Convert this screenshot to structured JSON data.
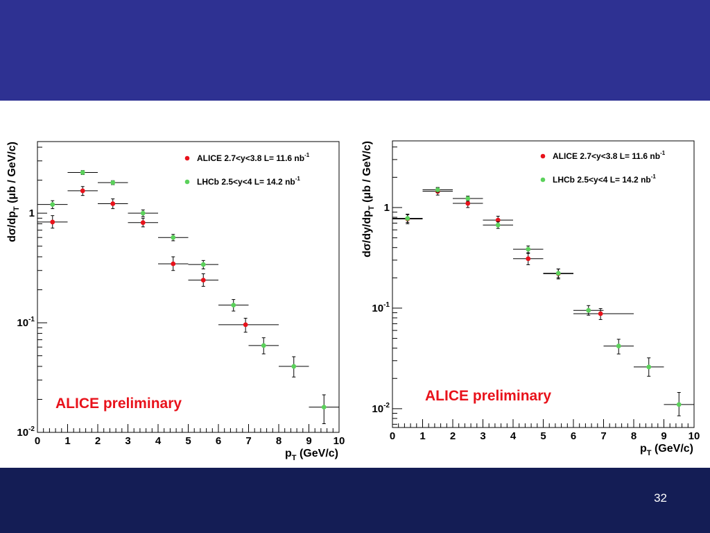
{
  "slide": {
    "number": "32",
    "colors": {
      "top_band": "#2e3192",
      "bottom_band": "#141d55",
      "alice": "#e8121b",
      "lhcb": "#5bd15b"
    }
  },
  "chart_data": [
    {
      "type": "scatter",
      "title": "",
      "xlabel": {
        "main": "p",
        "sub": "T",
        "rest": " (GeV/c)"
      },
      "ylabel": {
        "pre": "dσ/dp",
        "sub": "T",
        "rest": " (μb / GeV/c)"
      },
      "x_ticks": [
        "0",
        "1",
        "2",
        "3",
        "4",
        "5",
        "6",
        "7",
        "8",
        "9",
        "10"
      ],
      "y_ticks": [
        {
          "base": "10",
          "exp": "-2",
          "value": 0.01
        },
        {
          "base": "10",
          "exp": "-1",
          "value": 0.1
        },
        {
          "base": "1",
          "exp": "",
          "value": 1
        }
      ],
      "xlim": [
        0,
        10
      ],
      "ylim": [
        0.01,
        4.5
      ],
      "log_y": true,
      "legend_position": "top-right",
      "watermark": "ALICE preliminary",
      "series": [
        {
          "name": "ALICE 2.7<y<3.8 L= 11.6 nb",
          "name_sup": "-1",
          "color": "#e8121b",
          "points": [
            {
              "x": 0.5,
              "xerr": [
                0.5,
                0.5
              ],
              "y": 0.83,
              "ylo": 0.73,
              "yhi": 0.95
            },
            {
              "x": 1.5,
              "xerr": [
                0.5,
                0.5
              ],
              "y": 1.6,
              "ylo": 1.45,
              "yhi": 1.75
            },
            {
              "x": 2.5,
              "xerr": [
                0.5,
                0.5
              ],
              "y": 1.22,
              "ylo": 1.1,
              "yhi": 1.35
            },
            {
              "x": 3.5,
              "xerr": [
                0.5,
                0.5
              ],
              "y": 0.82,
              "ylo": 0.75,
              "yhi": 0.9
            },
            {
              "x": 4.5,
              "xerr": [
                0.5,
                0.5
              ],
              "y": 0.345,
              "ylo": 0.3,
              "yhi": 0.4
            },
            {
              "x": 5.5,
              "xerr": [
                0.5,
                0.5
              ],
              "y": 0.245,
              "ylo": 0.215,
              "yhi": 0.28
            },
            {
              "x": 6.9,
              "xerr": [
                0.9,
                1.1
              ],
              "y": 0.096,
              "ylo": 0.082,
              "yhi": 0.11
            }
          ]
        },
        {
          "name": "LHCb 2.5<y<4 L= 14.2 nb",
          "name_sup": "-1",
          "color": "#5bd15b",
          "points": [
            {
              "x": 0.5,
              "xerr": [
                0.5,
                0.5
              ],
              "y": 1.2,
              "ylo": 1.1,
              "yhi": 1.3
            },
            {
              "x": 1.5,
              "xerr": [
                0.5,
                0.5
              ],
              "y": 2.35,
              "ylo": 2.25,
              "yhi": 2.45
            },
            {
              "x": 2.5,
              "xerr": [
                0.5,
                0.5
              ],
              "y": 1.9,
              "ylo": 1.82,
              "yhi": 1.98
            },
            {
              "x": 3.5,
              "xerr": [
                0.5,
                0.5
              ],
              "y": 1.0,
              "ylo": 0.93,
              "yhi": 1.07
            },
            {
              "x": 4.5,
              "xerr": [
                0.5,
                0.5
              ],
              "y": 0.6,
              "ylo": 0.56,
              "yhi": 0.64
            },
            {
              "x": 5.5,
              "xerr": [
                0.5,
                0.5
              ],
              "y": 0.34,
              "ylo": 0.31,
              "yhi": 0.37
            },
            {
              "x": 6.5,
              "xerr": [
                0.5,
                0.5
              ],
              "y": 0.145,
              "ylo": 0.128,
              "yhi": 0.163
            },
            {
              "x": 7.5,
              "xerr": [
                0.5,
                0.5
              ],
              "y": 0.062,
              "ylo": 0.052,
              "yhi": 0.073
            },
            {
              "x": 8.5,
              "xerr": [
                0.5,
                0.5
              ],
              "y": 0.04,
              "ylo": 0.032,
              "yhi": 0.049
            },
            {
              "x": 9.5,
              "xerr": [
                0.5,
                0.5
              ],
              "y": 0.017,
              "ylo": 0.012,
              "yhi": 0.022
            }
          ]
        }
      ]
    },
    {
      "type": "scatter",
      "title": "",
      "xlabel": {
        "main": "p",
        "sub": "T",
        "rest": " (GeV/c)"
      },
      "ylabel": {
        "pre": "dσ/dy/dp",
        "sub": "T",
        "rest": " (μb / GeV/c)"
      },
      "x_ticks": [
        "0",
        "1",
        "2",
        "3",
        "4",
        "5",
        "6",
        "7",
        "8",
        "9",
        "10"
      ],
      "y_ticks": [
        {
          "base": "10",
          "exp": "-2",
          "value": 0.01
        },
        {
          "base": "10",
          "exp": "-1",
          "value": 0.1
        },
        {
          "base": "1",
          "exp": "",
          "value": 1
        }
      ],
      "xlim": [
        0,
        10
      ],
      "ylim": [
        0.0065,
        4.6
      ],
      "log_y": true,
      "legend_position": "top-right",
      "watermark": "ALICE preliminary",
      "series": [
        {
          "name": "ALICE 2.7<y<3.8 L= 11.6 nb",
          "name_sup": "-1",
          "color": "#e8121b",
          "points": [
            {
              "x": 0.5,
              "xerr": [
                0.5,
                0.5
              ],
              "y": 0.77,
              "ylo": 0.69,
              "yhi": 0.86
            },
            {
              "x": 1.5,
              "xerr": [
                0.5,
                0.5
              ],
              "y": 1.45,
              "ylo": 1.33,
              "yhi": 1.58
            },
            {
              "x": 2.5,
              "xerr": [
                0.5,
                0.5
              ],
              "y": 1.1,
              "ylo": 1.0,
              "yhi": 1.2
            },
            {
              "x": 3.5,
              "xerr": [
                0.5,
                0.5
              ],
              "y": 0.75,
              "ylo": 0.69,
              "yhi": 0.82
            },
            {
              "x": 4.5,
              "xerr": [
                0.5,
                0.5
              ],
              "y": 0.31,
              "ylo": 0.27,
              "yhi": 0.35
            },
            {
              "x": 5.5,
              "xerr": [
                0.5,
                0.5
              ],
              "y": 0.22,
              "ylo": 0.195,
              "yhi": 0.245
            },
            {
              "x": 6.9,
              "xerr": [
                0.9,
                1.1
              ],
              "y": 0.088,
              "ylo": 0.077,
              "yhi": 0.099
            }
          ]
        },
        {
          "name": "LHCb 2.5<y<4 L= 14.2 nb",
          "name_sup": "-1",
          "color": "#5bd15b",
          "points": [
            {
              "x": 0.5,
              "xerr": [
                0.5,
                0.5
              ],
              "y": 0.78,
              "ylo": 0.71,
              "yhi": 0.85
            },
            {
              "x": 1.5,
              "xerr": [
                0.5,
                0.5
              ],
              "y": 1.5,
              "ylo": 1.42,
              "yhi": 1.58
            },
            {
              "x": 2.5,
              "xerr": [
                0.5,
                0.5
              ],
              "y": 1.23,
              "ylo": 1.16,
              "yhi": 1.3
            },
            {
              "x": 3.5,
              "xerr": [
                0.5,
                0.5
              ],
              "y": 0.67,
              "ylo": 0.62,
              "yhi": 0.72
            },
            {
              "x": 4.5,
              "xerr": [
                0.5,
                0.5
              ],
              "y": 0.385,
              "ylo": 0.355,
              "yhi": 0.415
            },
            {
              "x": 5.5,
              "xerr": [
                0.5,
                0.5
              ],
              "y": 0.222,
              "ylo": 0.2,
              "yhi": 0.245
            },
            {
              "x": 6.5,
              "xerr": [
                0.5,
                0.5
              ],
              "y": 0.095,
              "ylo": 0.085,
              "yhi": 0.106
            },
            {
              "x": 7.5,
              "xerr": [
                0.5,
                0.5
              ],
              "y": 0.042,
              "ylo": 0.035,
              "yhi": 0.049
            },
            {
              "x": 8.5,
              "xerr": [
                0.5,
                0.5
              ],
              "y": 0.026,
              "ylo": 0.021,
              "yhi": 0.032
            },
            {
              "x": 9.5,
              "xerr": [
                0.5,
                0.5
              ],
              "y": 0.011,
              "ylo": 0.0085,
              "yhi": 0.0145
            }
          ]
        }
      ]
    }
  ]
}
